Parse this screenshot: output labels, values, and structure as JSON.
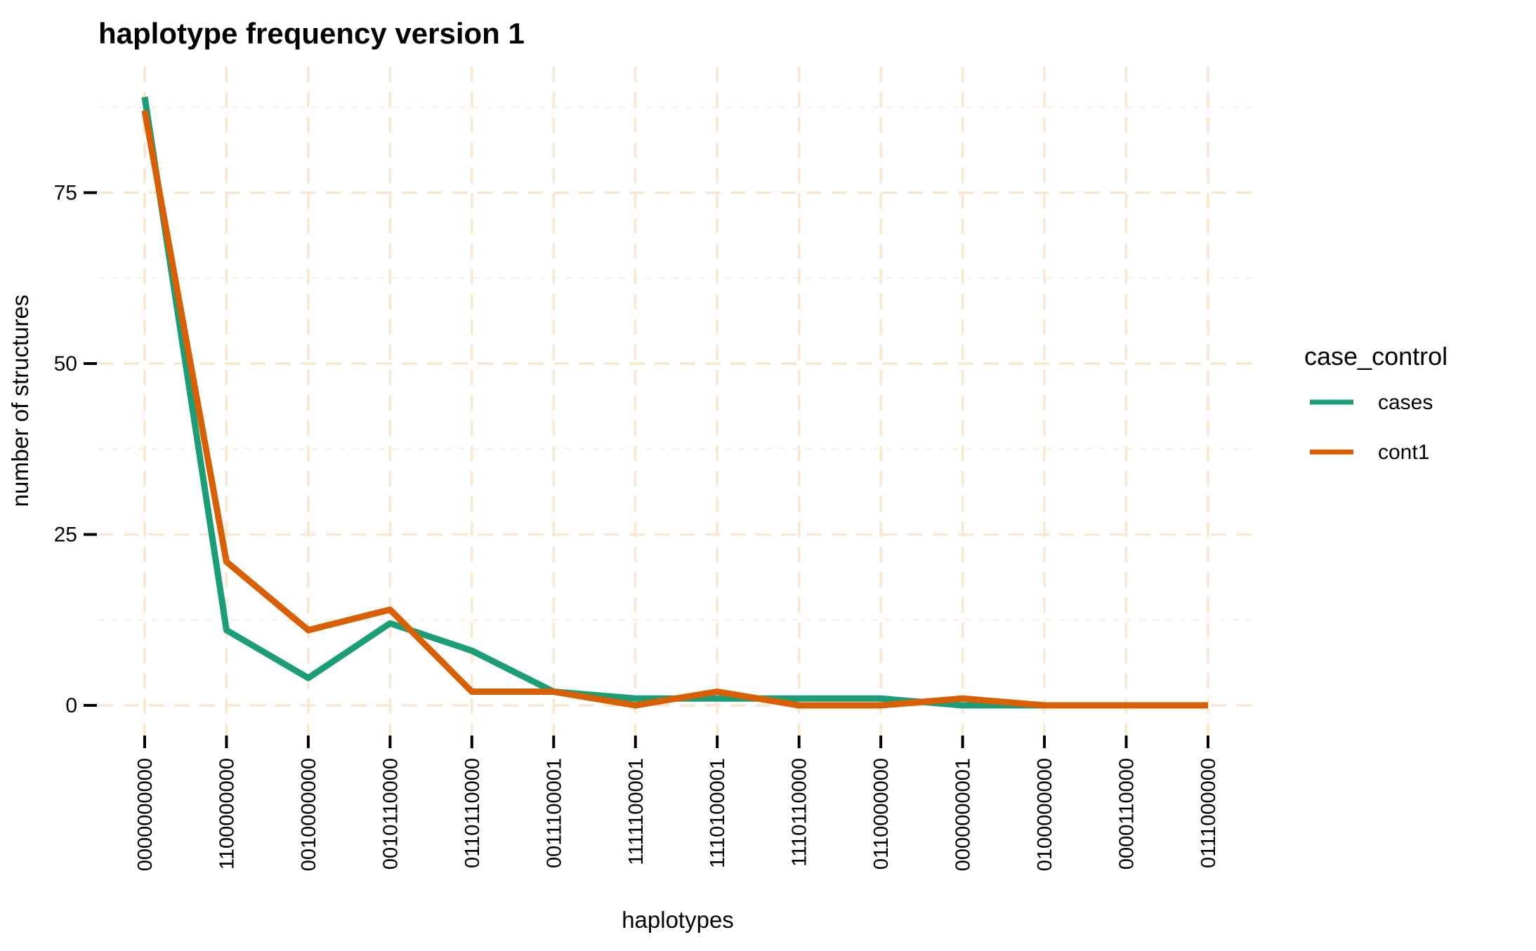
{
  "chart_data": {
    "type": "line",
    "title": "haplotype frequency version 1",
    "xlabel": "haplotypes",
    "ylabel": "number of structures",
    "legend_title": "case_control",
    "legend_position": "right",
    "grid": "dashed",
    "categories": [
      "0000000000",
      "1100000000",
      "0010000000",
      "0010110000",
      "0110110000",
      "0011100001",
      "1111100001",
      "1110100001",
      "1110110000",
      "0110000000",
      "0000000001",
      "0100000000",
      "0000110000",
      "0111000000"
    ],
    "series": [
      {
        "name": "cases",
        "color": "#1B9E77",
        "values": [
          89,
          11,
          4,
          12,
          8,
          2,
          1,
          1,
          1,
          1,
          0,
          0,
          0,
          0
        ]
      },
      {
        "name": "cont1",
        "color": "#D95F02",
        "values": [
          87,
          21,
          11,
          14,
          2,
          2,
          0,
          2,
          0,
          0,
          1,
          0,
          0,
          0
        ]
      }
    ],
    "y_ticks": [
      0,
      25,
      50,
      75
    ],
    "y_minor_ticks": [
      12.5,
      37.5,
      62.5,
      87.5
    ],
    "ylim": [
      -4.45,
      93.45
    ],
    "colors": {
      "grid_major": "#FAE7CF",
      "grid_minor": "#FCF0E2",
      "axis_tick": "#000000",
      "text": "#000000",
      "background": "#FFFFFF"
    }
  }
}
